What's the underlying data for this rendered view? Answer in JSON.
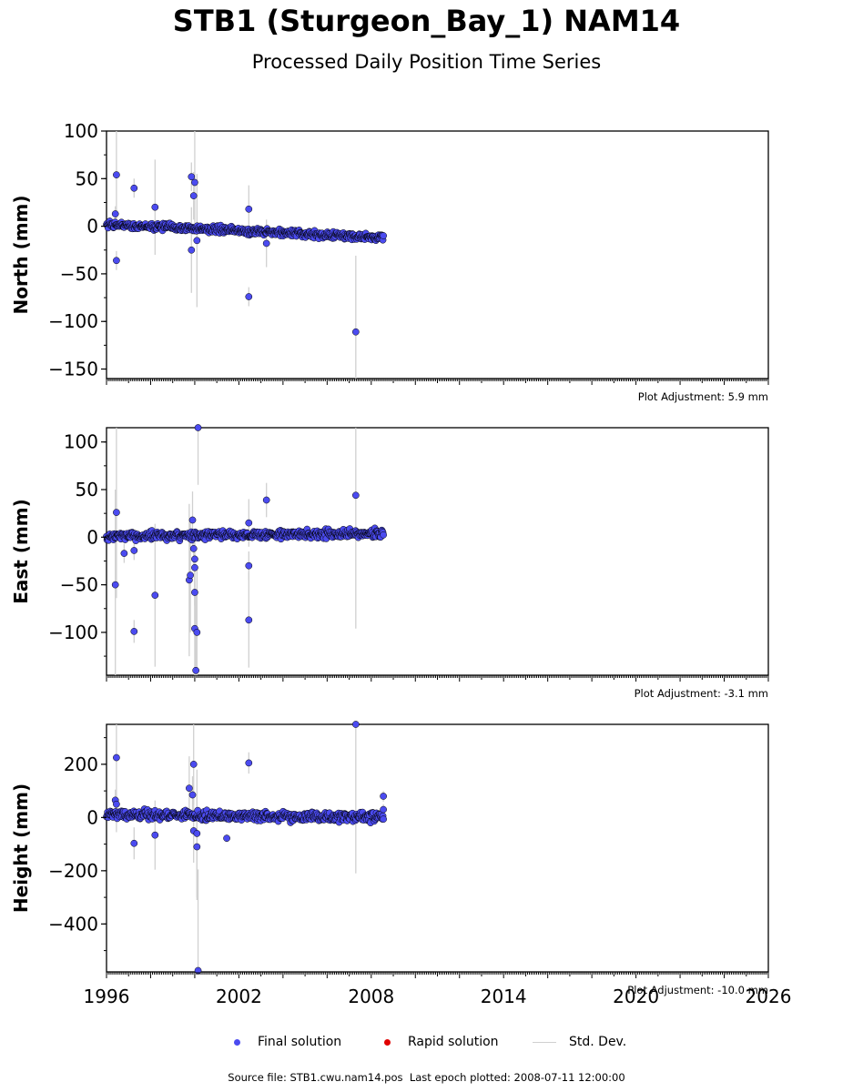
{
  "title": "STB1 (Sturgeon_Bay_1) NAM14",
  "subtitle": "Processed Daily Position Time Series",
  "footer": {
    "source_file": "Source file: STB1.cwu.nam14.pos",
    "last_epoch": "Last epoch plotted: 2008-07-11 12:00:00"
  },
  "legend": {
    "final": "Final solution",
    "rapid": "Rapid solution",
    "stddev": "Std. Dev."
  },
  "colors": {
    "final": "#4b4bf0",
    "final_edge": "#000000",
    "rapid": "#e00000",
    "stddev": "#d0d0d0"
  },
  "chart_data": [
    {
      "type": "scatter",
      "ylabel": "North (mm)",
      "adjustment": "Plot Adjustment: 5.9 mm",
      "xlim": [
        1996,
        2026
      ],
      "ylim": [
        -160,
        100
      ],
      "yticks": [
        100,
        50,
        0,
        -50,
        -100,
        -150
      ],
      "xticks": [
        "1996",
        "2002",
        "2008",
        "2014",
        "2020",
        "2026"
      ],
      "trend": {
        "x": [
          1996.0,
          2008.55
        ],
        "y": [
          2,
          -12
        ],
        "scatter": 2.5
      },
      "outliers": [
        {
          "x": 1996.45,
          "y": 54,
          "err": 55
        },
        {
          "x": 1996.4,
          "y": 13,
          "err": 8
        },
        {
          "x": 1996.45,
          "y": -36,
          "err": 10
        },
        {
          "x": 1997.25,
          "y": 40,
          "err": 10
        },
        {
          "x": 1998.2,
          "y": 20,
          "err": 50
        },
        {
          "x": 1999.85,
          "y": 52,
          "err": 15
        },
        {
          "x": 2000.0,
          "y": 46,
          "err": 55
        },
        {
          "x": 1999.95,
          "y": 32,
          "err": 25
        },
        {
          "x": 1999.85,
          "y": -25,
          "err": 45
        },
        {
          "x": 2000.1,
          "y": -15,
          "err": 70
        },
        {
          "x": 2002.45,
          "y": 18,
          "err": 25
        },
        {
          "x": 2002.45,
          "y": -74,
          "err": 10
        },
        {
          "x": 2003.25,
          "y": -18,
          "err": 25
        },
        {
          "x": 2007.3,
          "y": -111,
          "err": 80
        }
      ]
    },
    {
      "type": "scatter",
      "ylabel": "East (mm)",
      "adjustment": "Plot Adjustment: -3.1 mm",
      "xlim": [
        1996,
        2026
      ],
      "ylim": [
        -145,
        115
      ],
      "yticks": [
        100,
        50,
        0,
        -50,
        -100
      ],
      "xticks": [
        "1996",
        "2002",
        "2008",
        "2014",
        "2020",
        "2026"
      ],
      "trend": {
        "x": [
          1996.0,
          2008.55
        ],
        "y": [
          1,
          4
        ],
        "scatter": 3
      },
      "outliers": [
        {
          "x": 1996.45,
          "y": 26,
          "err": 90
        },
        {
          "x": 1996.4,
          "y": -50,
          "err": 100
        },
        {
          "x": 1996.8,
          "y": -17,
          "err": 10
        },
        {
          "x": 1997.25,
          "y": -14,
          "err": 10
        },
        {
          "x": 1997.25,
          "y": -99,
          "err": 12
        },
        {
          "x": 1998.2,
          "y": -61,
          "err": 75
        },
        {
          "x": 1999.75,
          "y": -45,
          "err": 80
        },
        {
          "x": 1999.8,
          "y": -40,
          "err": 60
        },
        {
          "x": 1999.9,
          "y": 18,
          "err": 30
        },
        {
          "x": 1999.95,
          "y": -12,
          "err": 20
        },
        {
          "x": 2000.0,
          "y": -23,
          "err": 30
        },
        {
          "x": 2000.0,
          "y": -32,
          "err": 40
        },
        {
          "x": 2000.0,
          "y": -58,
          "err": 40
        },
        {
          "x": 2000.0,
          "y": -96,
          "err": 50
        },
        {
          "x": 2000.1,
          "y": -100,
          "err": 70
        },
        {
          "x": 2000.05,
          "y": -140,
          "err": 80
        },
        {
          "x": 2000.15,
          "y": 115,
          "err": 60
        },
        {
          "x": 2002.45,
          "y": 15,
          "err": 25
        },
        {
          "x": 2002.45,
          "y": -30,
          "err": 15
        },
        {
          "x": 2002.45,
          "y": -87,
          "err": 50
        },
        {
          "x": 2003.25,
          "y": 39,
          "err": 18
        },
        {
          "x": 2007.3,
          "y": 44,
          "err": 140
        }
      ]
    },
    {
      "type": "scatter",
      "ylabel": "Height (mm)",
      "adjustment": "Plot Adjustment: -10.0 mm",
      "xlim": [
        1996,
        2026
      ],
      "ylim": [
        -580,
        350
      ],
      "yticks": [
        200,
        0,
        -200,
        -400
      ],
      "xticks": [
        "1996",
        "2002",
        "2008",
        "2014",
        "2020",
        "2026"
      ],
      "trend": {
        "x": [
          1996.0,
          2008.55
        ],
        "y": [
          12,
          0
        ],
        "scatter": 12
      },
      "outliers": [
        {
          "x": 1996.45,
          "y": 225,
          "err": 280
        },
        {
          "x": 1996.4,
          "y": 65,
          "err": 40
        },
        {
          "x": 1996.45,
          "y": 50,
          "err": 40
        },
        {
          "x": 1997.25,
          "y": -97,
          "err": 60
        },
        {
          "x": 1998.2,
          "y": -66,
          "err": 130
        },
        {
          "x": 1999.75,
          "y": 110,
          "err": 120
        },
        {
          "x": 1999.9,
          "y": 85,
          "err": 70
        },
        {
          "x": 1999.95,
          "y": 200,
          "err": 150
        },
        {
          "x": 1999.95,
          "y": -50,
          "err": 120
        },
        {
          "x": 2000.1,
          "y": -60,
          "err": 240
        },
        {
          "x": 2000.1,
          "y": -110,
          "err": 200
        },
        {
          "x": 2000.15,
          "y": -575,
          "err": 380
        },
        {
          "x": 2001.45,
          "y": -78,
          "err": 15
        },
        {
          "x": 2002.45,
          "y": 205,
          "err": 40
        },
        {
          "x": 2007.3,
          "y": 350,
          "err": 560
        },
        {
          "x": 2008.55,
          "y": 80,
          "err": 20
        },
        {
          "x": 2008.55,
          "y": 30,
          "err": 20
        }
      ]
    }
  ]
}
